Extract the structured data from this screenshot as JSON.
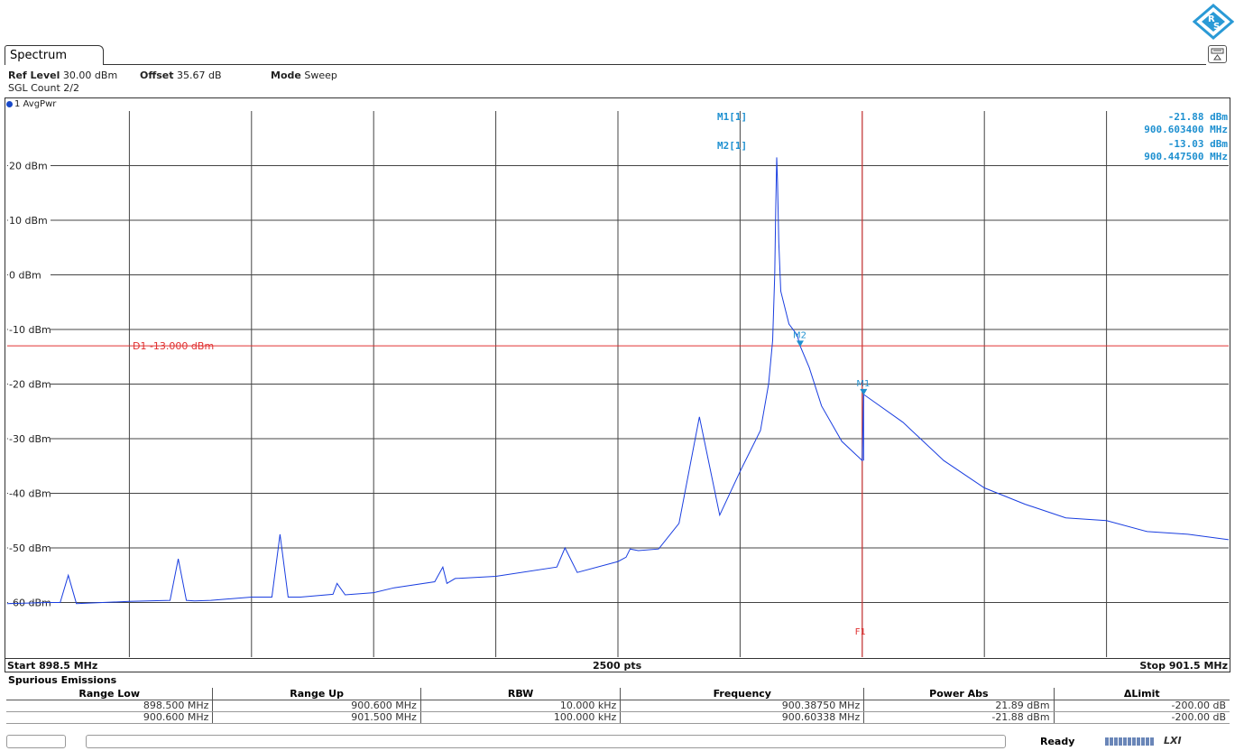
{
  "window": {
    "tab_label": "Spectrum"
  },
  "header": {
    "ref_level_label": "Ref Level",
    "ref_level_value": "30.00 dBm",
    "offset_label": "Offset",
    "offset_value": "35.67 dB",
    "mode_label": "Mode",
    "mode_value": "Sweep",
    "sgl_count": "SGL Count 2/2",
    "trace_label": "1 AvgPwr"
  },
  "markers": {
    "m1_label": "M1[1]",
    "m1_level": "-21.88 dBm",
    "m1_freq": "900.603400 MHz",
    "m2_label": "M2[1]",
    "m2_level": "-13.03 dBm",
    "m2_freq": "900.447500 MHz",
    "m1_tag": "M1",
    "m2_tag": "M2"
  },
  "lines": {
    "d1_label": "D1  -13.000 dBm",
    "f1_label": "F1",
    "color_limit": "#e03030",
    "color_trace": "#1a3ee0",
    "color_marker": "#1e90d0"
  },
  "footer": {
    "start": "Start 898.5 MHz",
    "points": "2500 pts",
    "stop": "Stop 901.5 MHz"
  },
  "spurious": {
    "title": "Spurious Emissions",
    "columns": [
      "Range Low",
      "Range Up",
      "RBW",
      "Frequency",
      "Power Abs",
      "ΔLimit"
    ],
    "rows": [
      [
        "898.500 MHz",
        "900.600 MHz",
        "10.000 kHz",
        "900.38750 MHz",
        "21.89 dBm",
        "-200.00 dB"
      ],
      [
        "900.600 MHz",
        "901.500 MHz",
        "100.000 kHz",
        "900.60338 MHz",
        "-21.88 dBm",
        "-200.00 dB"
      ]
    ]
  },
  "status": {
    "ready": "Ready",
    "lxi": "LXI"
  },
  "chart_data": {
    "type": "line",
    "title": "",
    "xlabel": "",
    "ylabel": "",
    "xlim": [
      898.5,
      901.5
    ],
    "ylim": [
      -70,
      30
    ],
    "x_unit": "MHz",
    "y_ticks": [
      "20 dBm",
      "10 dBm",
      "0 dBm",
      "-10 dBm",
      "-20 dBm",
      "-30 dBm",
      "-40 dBm",
      "-50 dBm",
      "-60 dBm"
    ],
    "y_tick_values": [
      20,
      10,
      0,
      -10,
      -20,
      -30,
      -40,
      -50,
      -60
    ],
    "grid": true,
    "limit_line_dbm": -13.0,
    "f1_mhz": 900.6,
    "series": [
      {
        "x": [
          898.5,
          898.6,
          898.63,
          898.65,
          898.67,
          898.8,
          898.9,
          898.92,
          898.94,
          898.96,
          899.0,
          899.1,
          899.15,
          899.17,
          899.19,
          899.22,
          899.3,
          899.31,
          899.33,
          899.4,
          899.45,
          899.55,
          899.57,
          899.58,
          899.6,
          899.7,
          899.85,
          899.87,
          899.9,
          900.0,
          900.02,
          900.03,
          900.05,
          900.1,
          900.15,
          900.2,
          900.25,
          900.3,
          900.35,
          900.37,
          900.38,
          900.385,
          900.3875,
          900.39,
          900.392,
          900.395,
          900.4,
          900.42,
          900.44,
          900.4475,
          900.47,
          900.5,
          900.55,
          900.6,
          900.6034,
          900.7,
          900.8,
          900.9,
          901.0,
          901.1,
          901.2,
          901.3,
          901.4,
          901.5
        ],
        "y": [
          -60.2,
          -60.0,
          -60.0,
          -55.0,
          -60.2,
          -59.8,
          -59.6,
          -52.0,
          -59.6,
          -59.7,
          -59.6,
          -59.0,
          -59.0,
          -47.5,
          -59.0,
          -59.0,
          -58.5,
          -56.5,
          -58.6,
          -58.2,
          -57.3,
          -56.2,
          -53.5,
          -56.5,
          -55.6,
          -55.2,
          -53.5,
          -50.0,
          -54.5,
          -52.5,
          -51.7,
          -50.2,
          -50.5,
          -50.2,
          -45.5,
          -26.0,
          -44.0,
          -36.0,
          -28.5,
          -20.0,
          -12.0,
          0.0,
          12.0,
          21.5,
          17.0,
          6.0,
          -3.0,
          -9.0,
          -11.0,
          -13.03,
          -17.0,
          -24.0,
          -30.5,
          -34.0,
          -21.88,
          -27.0,
          -34.0,
          -39.0,
          -42.0,
          -44.5,
          -45.0,
          -47.0,
          -47.5,
          -48.5
        ]
      }
    ]
  }
}
